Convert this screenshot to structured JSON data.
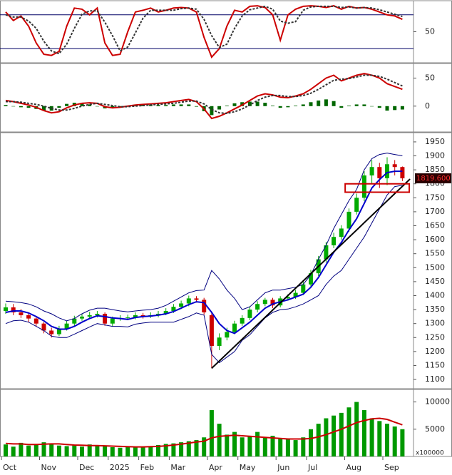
{
  "chart_data": [
    {
      "type": "line",
      "ylim": [
        -5,
        105
      ],
      "yticks": [
        50
      ],
      "reference_lines": [
        20,
        80
      ],
      "series": [
        {
          "kind": "line",
          "color": "#cc0000",
          "values": [
            85,
            70,
            78,
            60,
            30,
            10,
            8,
            15,
            60,
            92,
            90,
            80,
            92,
            30,
            8,
            10,
            50,
            85,
            88,
            92,
            85,
            88,
            92,
            93,
            92,
            85,
            40,
            5,
            20,
            60,
            88,
            85,
            95,
            96,
            93,
            80,
            35,
            80,
            90,
            95,
            96,
            95,
            93,
            96,
            90,
            95,
            92,
            93,
            90,
            85,
            80,
            78,
            72
          ]
        },
        {
          "kind": "dashed",
          "color": "#333333",
          "values": [
            80,
            76,
            76,
            69,
            56,
            33,
            16,
            11,
            28,
            56,
            81,
            87,
            87,
            67,
            43,
            16,
            23,
            48,
            74,
            88,
            88,
            88,
            88,
            91,
            92,
            90,
            72,
            43,
            22,
            28,
            56,
            78,
            89,
            92,
            95,
            90,
            69,
            65,
            68,
            88,
            94,
            95,
            95,
            95,
            93,
            94,
            92,
            93,
            92,
            89,
            85,
            81,
            77
          ]
        }
      ]
    },
    {
      "type": "line",
      "ylim": [
        -46,
        76
      ],
      "yticks": [
        0,
        50
      ],
      "series": [
        {
          "kind": "bar",
          "color": "#006600",
          "values": [
            2,
            0,
            -2,
            -3,
            -5,
            -8,
            -8,
            -3,
            4,
            6,
            5,
            3,
            0,
            -4,
            -4,
            -1,
            1,
            2,
            2,
            2,
            2,
            2,
            3,
            3,
            3,
            -1,
            -9,
            -16,
            -6,
            1,
            5,
            7,
            8,
            8,
            6,
            1,
            -3,
            -2,
            1,
            3,
            7,
            10,
            12,
            9,
            -3,
            1,
            3,
            3,
            0,
            -3,
            -8,
            -7,
            -6
          ]
        },
        {
          "kind": "line",
          "color": "#cc0000",
          "values": [
            10,
            8,
            5,
            2,
            -2,
            -8,
            -12,
            -10,
            -3,
            2,
            5,
            6,
            5,
            -1,
            -3,
            -2,
            0,
            2,
            3,
            4,
            5,
            6,
            8,
            10,
            12,
            8,
            -5,
            -22,
            -18,
            -12,
            -5,
            2,
            10,
            18,
            22,
            20,
            16,
            15,
            18,
            22,
            30,
            40,
            50,
            55,
            45,
            50,
            55,
            58,
            55,
            50,
            40,
            35,
            30
          ]
        },
        {
          "kind": "dashed",
          "color": "#333333",
          "values": [
            8,
            8,
            7,
            5,
            3,
            0,
            -4,
            -7,
            -7,
            -4,
            0,
            3,
            5,
            3,
            1,
            -1,
            -1,
            0,
            1,
            2,
            3,
            4,
            5,
            7,
            9,
            9,
            4,
            -6,
            -12,
            -13,
            -10,
            -5,
            2,
            10,
            16,
            19,
            19,
            17,
            17,
            19,
            23,
            30,
            38,
            46,
            48,
            49,
            52,
            55,
            55,
            53,
            48,
            42,
            36
          ]
        }
      ]
    },
    {
      "type": "candlestick",
      "ylim": [
        1067,
        1983
      ],
      "yticks": [
        1100,
        1150,
        1200,
        1250,
        1300,
        1350,
        1400,
        1450,
        1500,
        1550,
        1600,
        1650,
        1700,
        1750,
        1800,
        1850,
        1900,
        1950
      ],
      "up_color": "#00aa00",
      "down_color": "#cc0000",
      "open": [
        1345,
        1358,
        1340,
        1330,
        1318,
        1300,
        1275,
        1262,
        1282,
        1300,
        1318,
        1325,
        1330,
        1335,
        1300,
        1318,
        1320,
        1322,
        1330,
        1325,
        1330,
        1335,
        1345,
        1360,
        1372,
        1390,
        1385,
        1330,
        1220,
        1250,
        1270,
        1300,
        1320,
        1350,
        1370,
        1385,
        1365,
        1390,
        1395,
        1410,
        1440,
        1480,
        1530,
        1580,
        1610,
        1640,
        1700,
        1750,
        1830,
        1860,
        1820,
        1870,
        1860
      ],
      "high": [
        1372,
        1370,
        1352,
        1340,
        1325,
        1305,
        1285,
        1292,
        1310,
        1328,
        1335,
        1342,
        1345,
        1340,
        1325,
        1330,
        1332,
        1340,
        1338,
        1340,
        1345,
        1355,
        1370,
        1382,
        1400,
        1398,
        1392,
        1340,
        1265,
        1285,
        1310,
        1330,
        1362,
        1380,
        1392,
        1392,
        1398,
        1405,
        1420,
        1450,
        1492,
        1542,
        1592,
        1625,
        1652,
        1712,
        1765,
        1845,
        1885,
        1875,
        1895,
        1885,
        1862
      ],
      "low": [
        1335,
        1330,
        1320,
        1305,
        1290,
        1265,
        1250,
        1255,
        1275,
        1292,
        1310,
        1318,
        1322,
        1292,
        1290,
        1310,
        1312,
        1315,
        1318,
        1320,
        1322,
        1330,
        1338,
        1352,
        1362,
        1375,
        1332,
        1140,
        1205,
        1240,
        1262,
        1292,
        1312,
        1340,
        1362,
        1355,
        1358,
        1382,
        1388,
        1402,
        1432,
        1470,
        1518,
        1570,
        1600,
        1628,
        1690,
        1738,
        1800,
        1785,
        1795,
        1830,
        1810
      ],
      "close": [
        1358,
        1340,
        1330,
        1318,
        1300,
        1275,
        1262,
        1282,
        1300,
        1318,
        1325,
        1330,
        1335,
        1300,
        1318,
        1320,
        1322,
        1330,
        1325,
        1330,
        1335,
        1345,
        1360,
        1372,
        1390,
        1385,
        1340,
        1220,
        1250,
        1270,
        1300,
        1320,
        1350,
        1370,
        1385,
        1365,
        1390,
        1395,
        1410,
        1440,
        1480,
        1530,
        1580,
        1610,
        1640,
        1700,
        1750,
        1830,
        1860,
        1820,
        1870,
        1860,
        1819.6
      ],
      "series": [
        {
          "kind": "thin",
          "color": "#000080",
          "values": [
            1380,
            1378,
            1375,
            1370,
            1360,
            1345,
            1335,
            1320,
            1310,
            1318,
            1335,
            1348,
            1355,
            1355,
            1350,
            1345,
            1342,
            1345,
            1348,
            1350,
            1355,
            1365,
            1380,
            1395,
            1410,
            1418,
            1420,
            1490,
            1460,
            1420,
            1390,
            1350,
            1360,
            1385,
            1410,
            1420,
            1420,
            1425,
            1430,
            1440,
            1475,
            1530,
            1580,
            1640,
            1690,
            1740,
            1780,
            1850,
            1890,
            1905,
            1910,
            1905,
            1900
          ]
        },
        {
          "kind": "thin",
          "color": "#000080",
          "values": [
            1300,
            1310,
            1312,
            1305,
            1290,
            1275,
            1255,
            1250,
            1250,
            1262,
            1275,
            1288,
            1300,
            1295,
            1290,
            1290,
            1288,
            1298,
            1302,
            1305,
            1305,
            1305,
            1305,
            1315,
            1325,
            1338,
            1330,
            1190,
            1160,
            1180,
            1200,
            1240,
            1260,
            1290,
            1320,
            1340,
            1350,
            1352,
            1360,
            1370,
            1385,
            1400,
            1440,
            1470,
            1490,
            1530,
            1570,
            1610,
            1660,
            1710,
            1760,
            1790,
            1795
          ]
        },
        {
          "kind": "line",
          "color": "#0000cc",
          "values": [
            1340,
            1345,
            1345,
            1338,
            1325,
            1310,
            1290,
            1280,
            1280,
            1290,
            1305,
            1318,
            1328,
            1325,
            1320,
            1318,
            1315,
            1322,
            1325,
            1327,
            1330,
            1335,
            1343,
            1355,
            1368,
            1378,
            1375,
            1340,
            1300,
            1275,
            1265,
            1285,
            1305,
            1330,
            1355,
            1370,
            1378,
            1385,
            1395,
            1405,
            1430,
            1465,
            1510,
            1555,
            1590,
            1635,
            1675,
            1730,
            1785,
            1815,
            1840,
            1845,
            1845
          ]
        }
      ],
      "trendline": {
        "color": "#000000",
        "x": [
          27,
          53
        ],
        "y": [
          1140,
          1817
        ]
      },
      "zone": {
        "color": "#cc0000",
        "x": [
          44.5,
          52.9
        ],
        "y": [
          1770,
          1800
        ]
      },
      "price_tag": {
        "value": 1819.6,
        "label": "1819.600"
      }
    },
    {
      "type": "bar",
      "ylim": [
        0,
        12300
      ],
      "yticks": [
        5000,
        10000
      ],
      "unit_label": "x100000",
      "categories": [
        "Oct",
        null,
        null,
        null,
        null,
        "Nov",
        null,
        null,
        null,
        null,
        "Dec",
        null,
        null,
        null,
        "2025",
        null,
        null,
        null,
        "Feb",
        null,
        null,
        null,
        "Mar",
        null,
        null,
        null,
        null,
        "Apr",
        null,
        null,
        null,
        "May",
        null,
        null,
        null,
        null,
        "Jun",
        null,
        null,
        null,
        "Jul",
        null,
        null,
        null,
        null,
        "Aug",
        null,
        null,
        null,
        null,
        "Sep",
        null,
        null
      ],
      "series": [
        {
          "kind": "bar",
          "color": "#009900",
          "values": [
            2200,
            1800,
            2500,
            2000,
            2300,
            2600,
            2400,
            2000,
            1900,
            2100,
            1800,
            2200,
            2000,
            1900,
            1700,
            1600,
            1800,
            1700,
            1800,
            1900,
            2100,
            2300,
            2400,
            2600,
            2800,
            3000,
            3500,
            8500,
            6000,
            4000,
            4500,
            3500,
            3800,
            4500,
            3600,
            3800,
            3200,
            3300,
            3000,
            3500,
            5000,
            6000,
            7000,
            7500,
            8000,
            9000,
            10000,
            8500,
            7000,
            6500,
            6000,
            5500,
            5000
          ]
        },
        {
          "kind": "line",
          "color": "#cc0000",
          "values": [
            2400,
            2300,
            2300,
            2200,
            2200,
            2250,
            2300,
            2300,
            2200,
            2100,
            2050,
            2000,
            2000,
            1950,
            1900,
            1850,
            1800,
            1750,
            1750,
            1800,
            1850,
            1950,
            2100,
            2250,
            2450,
            2650,
            2800,
            3400,
            3700,
            3800,
            3900,
            3800,
            3700,
            3600,
            3500,
            3400,
            3300,
            3200,
            3200,
            3200,
            3300,
            3600,
            4000,
            4500,
            5000,
            5600,
            6200,
            6600,
            6900,
            7000,
            6800,
            6300,
            5800
          ]
        }
      ]
    }
  ]
}
